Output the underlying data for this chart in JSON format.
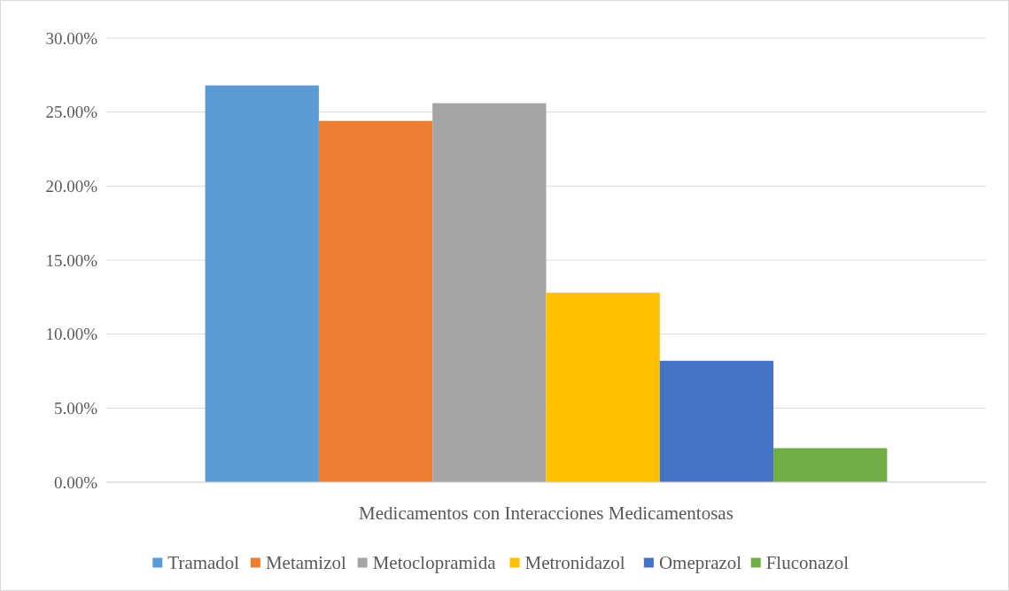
{
  "chart_data": {
    "type": "bar",
    "categories": [
      "Medicamentos con Interacciones Medicamentosas"
    ],
    "series": [
      {
        "name": "Tramadol",
        "color": "#5b9bd5",
        "values": [
          26.8
        ]
      },
      {
        "name": "Metamizol",
        "color": "#ed7d31",
        "values": [
          24.4
        ]
      },
      {
        "name": "Metoclopramida",
        "color": "#a5a5a5",
        "values": [
          25.6
        ]
      },
      {
        "name": "Metronidazol",
        "color": "#ffc000",
        "values": [
          12.8
        ]
      },
      {
        "name": "Omeprazol",
        "color": "#4472c4",
        "values": [
          8.2
        ]
      },
      {
        "name": "Fluconazol",
        "color": "#70ad47",
        "values": [
          2.3
        ]
      }
    ],
    "ylim": [
      0,
      30
    ],
    "yticks": [
      {
        "value": 0,
        "label": "0.00%"
      },
      {
        "value": 5,
        "label": "5.00%"
      },
      {
        "value": 10,
        "label": "10.00%"
      },
      {
        "value": 15,
        "label": "15.00%"
      },
      {
        "value": 20,
        "label": "20.00%"
      },
      {
        "value": 25,
        "label": "25.00%"
      },
      {
        "value": 30,
        "label": "30.00%"
      }
    ],
    "grid": "y",
    "legend": "bottom"
  }
}
